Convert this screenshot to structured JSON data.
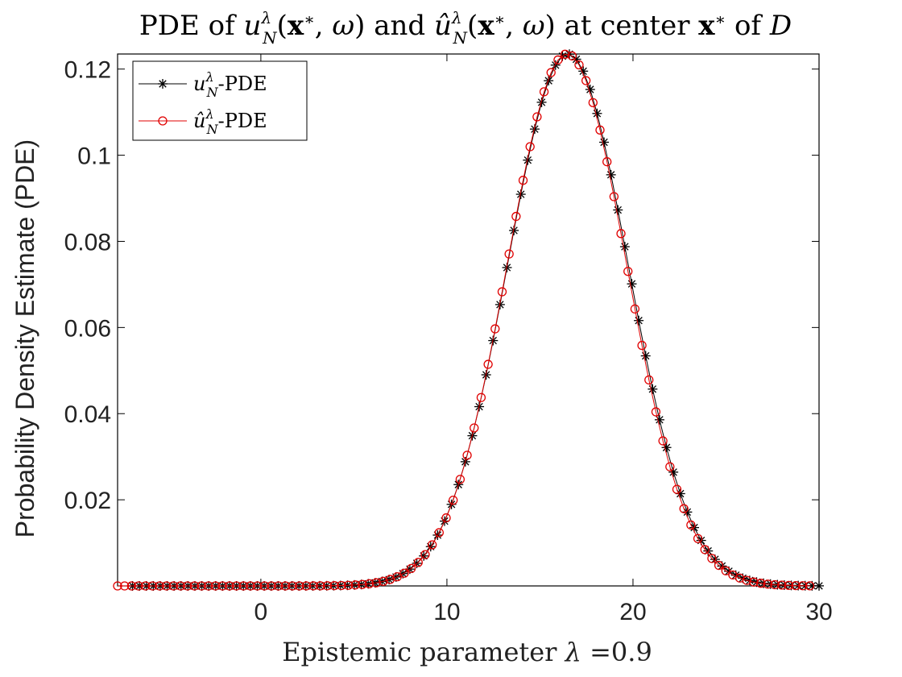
{
  "chart_data": {
    "type": "line",
    "title": "PDE of u_N^λ(x*, ω) and û_N^λ(x*, ω) at center x* of D",
    "xlabel": "Epistemic parameter λ =0.9",
    "ylabel": "Probability Density Estimate (PDE)",
    "xlim": [
      -7.7,
      30
    ],
    "ylim": [
      0,
      0.1235
    ],
    "x_ticks": [
      0,
      10,
      20,
      30
    ],
    "y_ticks": [
      0.02,
      0.04,
      0.06,
      0.08,
      0.1,
      0.12
    ],
    "x_tick_labels": [
      "0",
      "10",
      "20",
      "30"
    ],
    "y_tick_labels": [
      "0.02",
      "0.04",
      "0.06",
      "0.08",
      "0.1",
      "0.12"
    ],
    "grid": false,
    "legend_position": "top-left",
    "series": [
      {
        "name": "u_N^λ-PDE",
        "color": "#000000",
        "marker": "asterisk",
        "x_start": -6.9,
        "x_end": 30,
        "num_points": 100,
        "mean": 16.5,
        "std": 3.23,
        "peak": 0.1235
      },
      {
        "name": "û_N^λ-PDE",
        "color": "#e00000",
        "marker": "circle",
        "x_start": -7.7,
        "x_end": 29.5,
        "num_points": 100,
        "mean": 16.45,
        "std": 3.2,
        "peak": 0.1235
      }
    ]
  }
}
